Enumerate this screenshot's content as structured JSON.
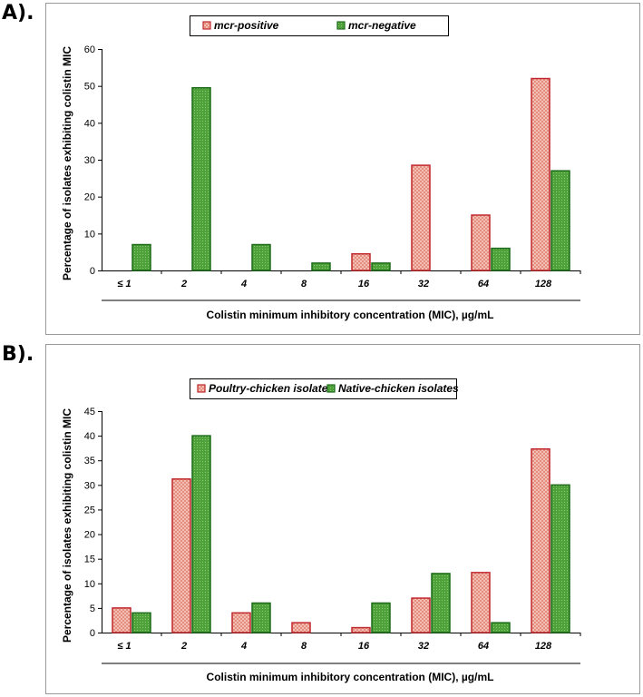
{
  "panels": {
    "a": {
      "label": "A)."
    },
    "b": {
      "label": "B)."
    }
  },
  "colors": {
    "positive_fill": "#f4c9bf",
    "positive_stroke": "#c0282d",
    "negative_fill": "#4ea239",
    "negative_stroke": "#1d6b1a"
  },
  "chart_data": [
    {
      "type": "bar",
      "title": "",
      "categories": [
        "≤ 1",
        "2",
        "4",
        "8",
        "16",
        "32",
        "64",
        "128"
      ],
      "series": [
        {
          "name": "mcr-positive",
          "values": [
            0,
            0,
            0,
            0,
            4.5,
            28.5,
            15,
            52
          ]
        },
        {
          "name": "mcr-negative",
          "values": [
            7,
            49.5,
            7,
            2,
            2,
            0,
            6,
            27
          ]
        }
      ],
      "xlabel": "Colistin minimum inhibitory concentration (MIC), µg/mL",
      "ylabel": "Percentage of isolates exhibiting colistin MIC",
      "ylim": [
        0,
        60
      ],
      "yticks": [
        0,
        10,
        20,
        30,
        40,
        50,
        60
      ],
      "legend": "top-center"
    },
    {
      "type": "bar",
      "title": "",
      "categories": [
        "≤ 1",
        "2",
        "4",
        "8",
        "16",
        "32",
        "64",
        "128"
      ],
      "series": [
        {
          "name": "Poultry-chicken isolates",
          "values": [
            5,
            31.2,
            4,
            2,
            1,
            7,
            12.2,
            37.3
          ]
        },
        {
          "name": "Native-chicken isolates",
          "values": [
            4,
            40,
            6,
            0,
            6,
            12,
            2,
            30
          ]
        }
      ],
      "xlabel": "Colistin minimum inhibitory concentration (MIC), µg/mL",
      "ylabel": "Percentage of isolates exhibiting colistin MIC",
      "ylim": [
        0,
        45
      ],
      "yticks": [
        0,
        5,
        10,
        15,
        20,
        25,
        30,
        35,
        40,
        45
      ],
      "legend": "top-center"
    }
  ]
}
